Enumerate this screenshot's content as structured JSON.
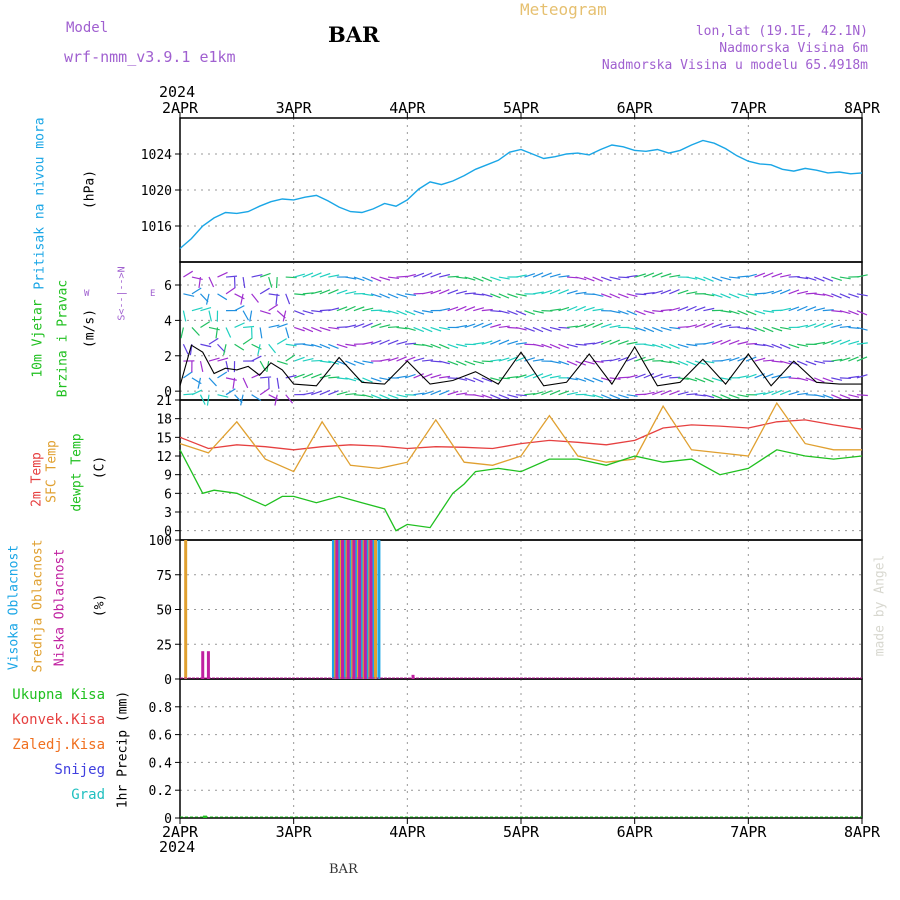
{
  "header": {
    "model_label": "Model",
    "model_name": "wrf-nmm_v3.9.1 e1km",
    "station": "BAR",
    "meteogram_title": "Meteogram",
    "lonlat": "lon,lat (19.1E, 42.1N)",
    "elevation": "Nadmorska Visina 6m",
    "model_elevation": "Nadmorska Visina u modelu 65.4918m",
    "footer_station": "BAR",
    "watermark": "made by Angel"
  },
  "time_axis": {
    "year_top": "2024",
    "year_bottom": "2024",
    "ticks": [
      "2APR",
      "3APR",
      "4APR",
      "5APR",
      "6APR",
      "7APR",
      "8APR"
    ]
  },
  "colors": {
    "pressure": "#1aa6e6",
    "temp2m": "#e64040",
    "sfc_temp": "#e0a030",
    "dewpt": "#20c020",
    "cloud_high": "#1aa6e6",
    "cloud_mid": "#e0a030",
    "cloud_low": "#c020a0",
    "wind_speed": "#000000"
  },
  "chart_data": [
    {
      "type": "line",
      "panel": "pressure",
      "ylabel_parts": [
        "Pritisak na nivou mora",
        "(hPa)"
      ],
      "ylim": [
        1012,
        1028
      ],
      "yticks": [
        1016,
        1020,
        1024
      ],
      "series": [
        {
          "name": "Pritisak na nivou mora",
          "x": [
            0,
            0.1,
            0.2,
            0.3,
            0.4,
            0.5,
            0.6,
            0.7,
            0.8,
            0.9,
            1.0,
            1.1,
            1.2,
            1.3,
            1.4,
            1.5,
            1.6,
            1.7,
            1.8,
            1.9,
            2.0,
            2.1,
            2.2,
            2.3,
            2.4,
            2.5,
            2.6,
            2.7,
            2.8,
            2.9,
            3.0,
            3.1,
            3.2,
            3.3,
            3.4,
            3.5,
            3.6,
            3.7,
            3.8,
            3.9,
            4.0,
            4.1,
            4.2,
            4.3,
            4.4,
            4.5,
            4.6,
            4.7,
            4.8,
            4.9,
            5.0,
            5.1,
            5.2,
            5.3,
            5.4,
            5.5,
            5.6,
            5.7,
            5.8,
            5.9,
            6.0
          ],
          "values": [
            1013.5,
            1014.6,
            1016.0,
            1016.9,
            1017.5,
            1017.4,
            1017.6,
            1018.2,
            1018.7,
            1019.0,
            1018.9,
            1019.2,
            1019.4,
            1018.8,
            1018.1,
            1017.6,
            1017.5,
            1017.9,
            1018.5,
            1018.2,
            1018.9,
            1020.1,
            1020.9,
            1020.6,
            1021.0,
            1021.6,
            1022.3,
            1022.8,
            1023.3,
            1024.2,
            1024.5,
            1024.0,
            1023.5,
            1023.7,
            1024.0,
            1024.1,
            1023.9,
            1024.5,
            1025.0,
            1024.8,
            1024.4,
            1024.3,
            1024.5,
            1024.1,
            1024.4,
            1025.0,
            1025.5,
            1025.2,
            1024.6,
            1023.8,
            1023.2,
            1022.9,
            1022.8,
            1022.3,
            1022.1,
            1022.4,
            1022.2,
            1021.9,
            1022.0,
            1021.8,
            1021.9
          ]
        }
      ]
    },
    {
      "type": "line",
      "panel": "wind",
      "ylabel_parts": [
        "10m Vjetar",
        "Brzina i Pravac",
        "(m/s)"
      ],
      "compass": {
        "n": "N",
        "s": "S",
        "e": "E",
        "w": "W",
        "arrow": "<--|-->"
      },
      "ylim": [
        -0.5,
        7.3
      ],
      "yticks": [
        0,
        2,
        4,
        6
      ],
      "series": [
        {
          "name": "Brzina",
          "x": [
            0,
            0.1,
            0.2,
            0.3,
            0.4,
            0.5,
            0.6,
            0.7,
            0.8,
            0.9,
            1.0,
            1.2,
            1.4,
            1.6,
            1.8,
            2.0,
            2.2,
            2.4,
            2.6,
            2.8,
            3.0,
            3.2,
            3.4,
            3.6,
            3.8,
            4.0,
            4.2,
            4.4,
            4.6,
            4.8,
            5.0,
            5.2,
            5.4,
            5.6,
            5.8,
            6.0
          ],
          "values": [
            0.3,
            2.6,
            2.2,
            1.0,
            1.3,
            1.2,
            1.4,
            0.9,
            1.6,
            1.2,
            0.4,
            0.3,
            1.9,
            0.5,
            0.4,
            1.7,
            0.4,
            0.6,
            1.1,
            0.4,
            2.2,
            0.3,
            0.5,
            2.1,
            0.4,
            2.5,
            0.3,
            0.5,
            1.8,
            0.4,
            2.1,
            0.3,
            1.7,
            0.5,
            0.4,
            0.4
          ]
        }
      ]
    },
    {
      "type": "line",
      "panel": "temperature",
      "ylabel_parts": [
        "2m Temp",
        "SFC Temp",
        "dewpt Temp",
        "(C)"
      ],
      "ylim": [
        -1.5,
        21
      ],
      "yticks": [
        0,
        3,
        6,
        9,
        12,
        15,
        18,
        21
      ],
      "series": [
        {
          "name": "2m Temp",
          "x": [
            0,
            0.25,
            0.5,
            0.75,
            1.0,
            1.25,
            1.5,
            1.75,
            2.0,
            2.25,
            2.5,
            2.75,
            3.0,
            3.25,
            3.5,
            3.75,
            4.0,
            4.25,
            4.5,
            4.75,
            5.0,
            5.25,
            5.5,
            5.75,
            6.0
          ],
          "values": [
            15,
            13.2,
            13.8,
            13.5,
            13.0,
            13.5,
            13.8,
            13.6,
            13.2,
            13.5,
            13.4,
            13.2,
            14.0,
            14.5,
            14.2,
            13.8,
            14.5,
            16.5,
            17.0,
            16.8,
            16.5,
            17.5,
            17.8,
            17.0,
            16.3
          ]
        },
        {
          "name": "SFC Temp",
          "x": [
            0,
            0.25,
            0.5,
            0.75,
            1.0,
            1.25,
            1.5,
            1.75,
            2.0,
            2.25,
            2.5,
            2.75,
            3.0,
            3.25,
            3.5,
            3.75,
            4.0,
            4.25,
            4.5,
            4.75,
            5.0,
            5.25,
            5.5,
            5.75,
            6.0
          ],
          "values": [
            14,
            12.5,
            17.5,
            11.5,
            9.5,
            17.5,
            10.5,
            10,
            11,
            17.8,
            11,
            10.5,
            12,
            18.5,
            12,
            11,
            11.5,
            20,
            13,
            12.5,
            12,
            20.5,
            14,
            13,
            13
          ]
        },
        {
          "name": "dewpt Temp",
          "x": [
            0,
            0.1,
            0.2,
            0.3,
            0.5,
            0.75,
            0.9,
            1.0,
            1.2,
            1.4,
            1.6,
            1.8,
            1.9,
            2.0,
            2.2,
            2.4,
            2.5,
            2.6,
            2.8,
            3.0,
            3.25,
            3.5,
            3.75,
            4.0,
            4.25,
            4.5,
            4.75,
            5.0,
            5.25,
            5.5,
            5.75,
            6.0
          ],
          "values": [
            13,
            9.5,
            6,
            6.5,
            6,
            4,
            5.5,
            5.5,
            4.5,
            5.5,
            4.5,
            3.5,
            0,
            1,
            0.5,
            6,
            7.5,
            9.5,
            10,
            9.5,
            11.5,
            11.5,
            10.5,
            12,
            11,
            11.5,
            9,
            10,
            13,
            12,
            11.5,
            12
          ]
        }
      ]
    },
    {
      "type": "bar",
      "panel": "clouds",
      "ylabel_parts": [
        "Visoka Oblacnost",
        "Srednja Oblacnost",
        "Niska Oblacnost",
        "(%)"
      ],
      "ylim": [
        0,
        100
      ],
      "yticks": [
        0,
        25,
        50,
        75,
        100
      ],
      "series": [
        {
          "name": "Visoka Oblacnost",
          "x": [
            1.35,
            1.4,
            1.45,
            1.5,
            1.55,
            1.6,
            1.65,
            1.7,
            1.75
          ],
          "values": [
            100,
            100,
            100,
            100,
            100,
            100,
            100,
            100,
            100
          ]
        },
        {
          "name": "Srednja Oblacnost",
          "x": [
            0.05,
            1.37,
            1.42,
            1.47,
            1.52,
            1.57,
            1.62,
            1.67,
            1.72
          ],
          "values": [
            100,
            100,
            100,
            100,
            100,
            100,
            100,
            100,
            100
          ]
        },
        {
          "name": "Niska Oblacnost",
          "x": [
            0.2,
            0.25,
            1.38,
            1.43,
            1.48,
            1.53,
            1.58,
            1.63,
            1.68,
            2.05
          ],
          "values": [
            20,
            20,
            100,
            100,
            100,
            100,
            100,
            100,
            100,
            3
          ]
        }
      ]
    },
    {
      "type": "bar",
      "panel": "precip",
      "ylabel_parts": [
        "1hr Precip (mm)"
      ],
      "legend": [
        "Ukupna Kisa",
        "Konvek.Kisa",
        "Zaledj.Kisa",
        "Snijeg",
        "Grad"
      ],
      "legend_colors": [
        "#20c020",
        "#e64040",
        "#f07020",
        "#4040e0",
        "#20c0c0"
      ],
      "ylim": [
        0,
        1.0
      ],
      "yticks": [
        0,
        0.2,
        0.4,
        0.6,
        0.8
      ],
      "series": [
        {
          "name": "Ukupna Kisa",
          "x": [
            0.22
          ],
          "values": [
            0.01
          ]
        }
      ]
    }
  ]
}
